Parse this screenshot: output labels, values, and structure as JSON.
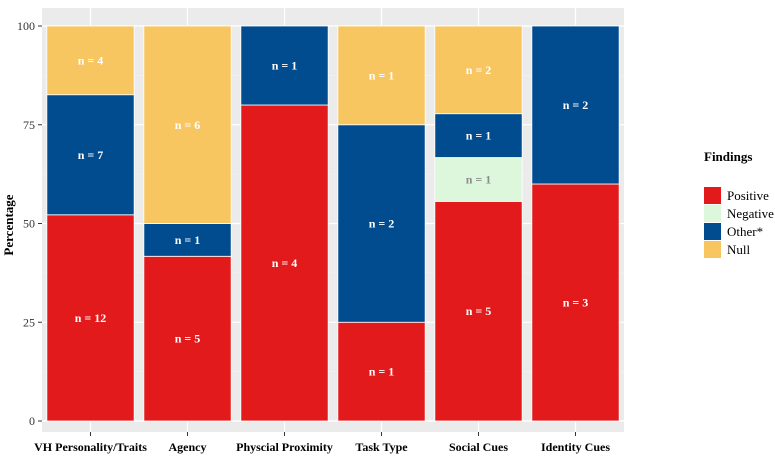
{
  "chart_data": {
    "type": "bar",
    "stacked": true,
    "title": "",
    "xlabel": "",
    "ylabel": "Percentage",
    "ylim": [
      0,
      100
    ],
    "yticks": [
      0,
      25,
      50,
      75,
      100
    ],
    "grid": true,
    "categories": [
      "VH Personality/Traits",
      "Agency",
      "Physcial Proximity",
      "Task Type",
      "Social Cues",
      "Identity Cues"
    ],
    "series": [
      {
        "name": "Positive",
        "color": "#e31a1c",
        "label_color": "#ffffff",
        "values": [
          52.2,
          41.7,
          80.0,
          25.0,
          55.6,
          60.0
        ],
        "counts": [
          "n = 12",
          "n = 5",
          "n = 4",
          "n = 1",
          "n = 5",
          "n = 3"
        ]
      },
      {
        "name": "Negative",
        "color": "#ddf7dd",
        "label_color": "#8c8c8c",
        "values": [
          0,
          0,
          0,
          0,
          11.1,
          0
        ],
        "counts": [
          "",
          "",
          "",
          "",
          "n = 1",
          ""
        ]
      },
      {
        "name": "Other*",
        "color": "#004c8f",
        "label_color": "#ffffff",
        "values": [
          30.4,
          8.3,
          20.0,
          50.0,
          11.1,
          40.0
        ],
        "counts": [
          "n = 7",
          "n = 1",
          "n = 1",
          "n = 2",
          "n = 1",
          "n = 2"
        ]
      },
      {
        "name": "Null",
        "color": "#f7c660",
        "label_color": "#ffffff",
        "values": [
          17.4,
          50.0,
          0,
          25.0,
          22.2,
          0
        ],
        "counts": [
          "n = 4",
          "n = 6",
          "",
          "n = 1",
          "n = 2",
          ""
        ]
      }
    ],
    "legend": {
      "title": "Findings",
      "position": "right"
    }
  }
}
